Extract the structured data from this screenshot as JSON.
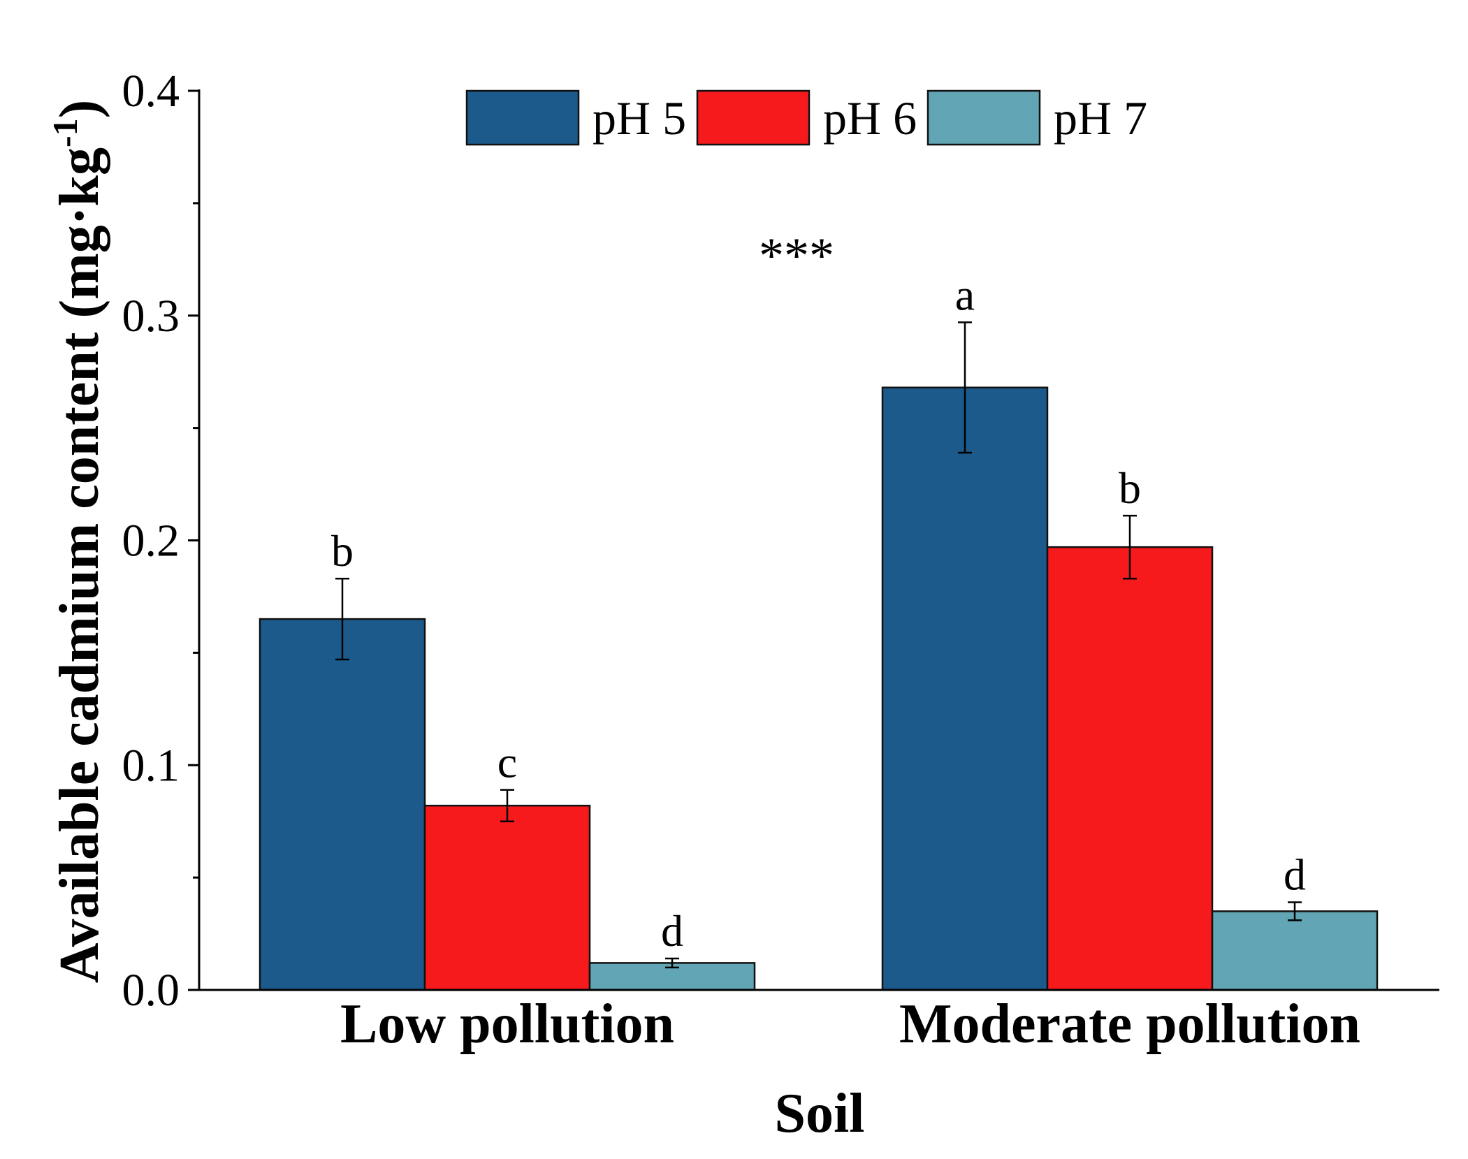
{
  "chart_data": {
    "type": "bar",
    "title": "",
    "xlabel": "Soil",
    "ylabel": "Available cadmium content (mg·kg",
    "ylabel_sup": "-1",
    "ylabel_close": ")",
    "ylim": [
      0,
      0.4
    ],
    "yticks": [
      "0.0",
      "0.1",
      "0.2",
      "0.3",
      "0.4"
    ],
    "categories": [
      "Low pollution",
      "Moderate pollution"
    ],
    "series": [
      {
        "name": "pH 5",
        "color": "#1c5a8c",
        "values": [
          0.165,
          0.268
        ],
        "errors": [
          0.018,
          0.029
        ],
        "letters": [
          "b",
          "a"
        ]
      },
      {
        "name": "pH 6",
        "color": "#f61a1c",
        "values": [
          0.082,
          0.197
        ],
        "errors": [
          0.007,
          0.014
        ],
        "letters": [
          "c",
          "b"
        ]
      },
      {
        "name": "pH 7",
        "color": "#62a5b4",
        "values": [
          0.012,
          0.035
        ],
        "errors": [
          0.002,
          0.004
        ],
        "letters": [
          "d",
          "d"
        ]
      }
    ],
    "annotation": "***",
    "legend_position": "top-center"
  }
}
